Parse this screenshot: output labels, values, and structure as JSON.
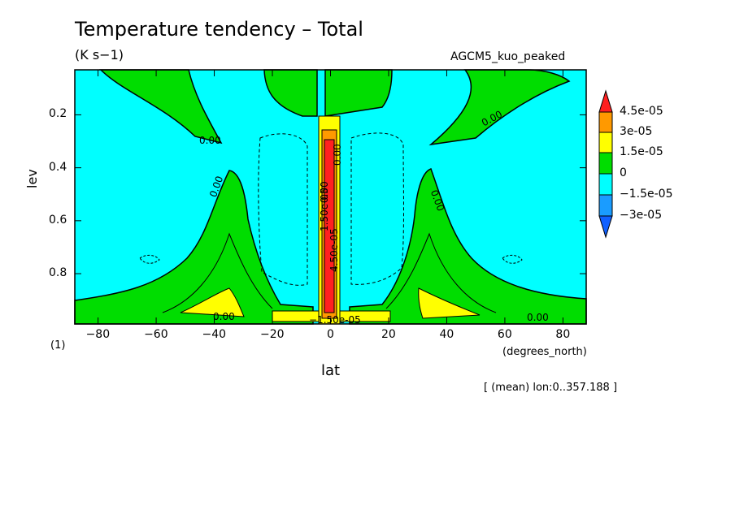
{
  "chart_data": {
    "type": "heatmap",
    "title": "Temperature tendency – Total",
    "units": "(K s−1)",
    "model_label": "AGCM5_kuo_peaked",
    "xlabel": "lat",
    "ylabel": "lev",
    "x_units": "(degrees_north)",
    "count_label": "(1)",
    "footnote": "[ (mean) lon:0..357.188 ]",
    "xlim": [
      -88,
      88
    ],
    "ylim": [
      0.99,
      0.03
    ],
    "x_ticks": [
      {
        "value": -80,
        "label": "−80"
      },
      {
        "value": -60,
        "label": "−60"
      },
      {
        "value": -40,
        "label": "−40"
      },
      {
        "value": -20,
        "label": "−20"
      },
      {
        "value": 0,
        "label": "0"
      },
      {
        "value": 20,
        "label": "20"
      },
      {
        "value": 40,
        "label": "40"
      },
      {
        "value": 60,
        "label": "60"
      },
      {
        "value": 80,
        "label": "80"
      }
    ],
    "y_ticks": [
      {
        "value": 0.2,
        "label": "0.2"
      },
      {
        "value": 0.4,
        "label": "0.4"
      },
      {
        "value": 0.6,
        "label": "0.6"
      },
      {
        "value": 0.8,
        "label": "0.8"
      }
    ],
    "colorbar": {
      "levels": [
        "4.5e-05",
        "3e-05",
        "1.5e-05",
        "0",
        "−1.5e-05",
        "−3e-05"
      ],
      "colors": [
        "#ff2020",
        "#ff9900",
        "#ffff00",
        "#00dd00",
        "#00ffff",
        "#1a9cff",
        "#1060ff"
      ]
    },
    "contour_labels": [
      "0.00",
      "0.00",
      "0.00",
      "0.00",
      "0.00",
      "0.00",
      "0.00",
      "0.00",
      "−1.50e-05",
      "1.50e-05",
      "4.50e-05"
    ]
  }
}
